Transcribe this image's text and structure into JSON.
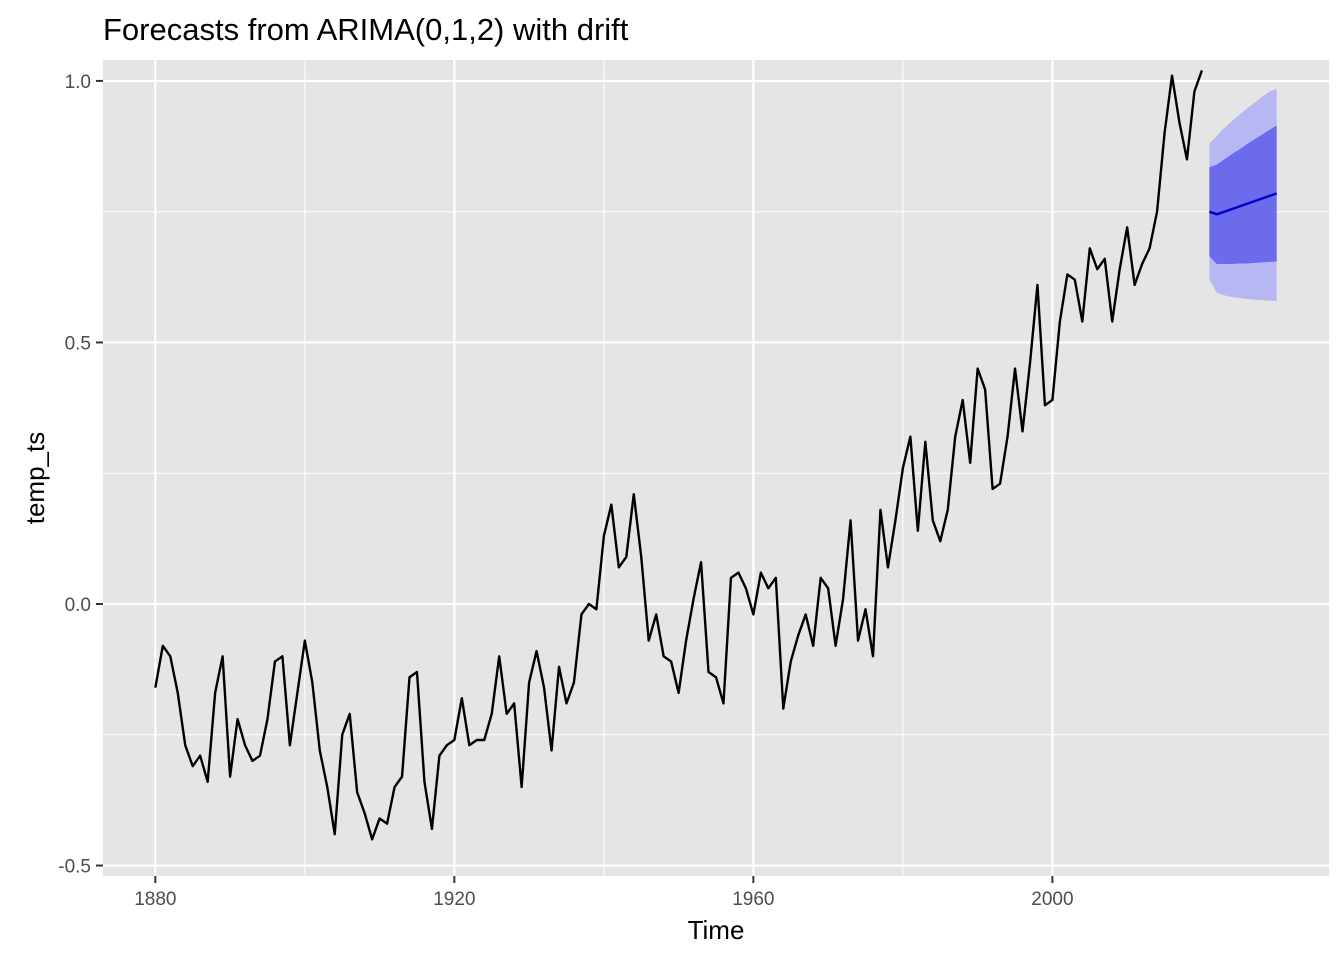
{
  "chart_data": {
    "type": "line",
    "title": "Forecasts from ARIMA(0,1,2) with drift",
    "xlabel": "Time",
    "ylabel": "temp_ts",
    "xlim": [
      1873,
      2037
    ],
    "ylim": [
      -0.52,
      1.04
    ],
    "x_ticks": [
      1880,
      1920,
      1960,
      2000
    ],
    "x_tick_labels": [
      "1880",
      "1920",
      "1960",
      "2000"
    ],
    "y_ticks": [
      -0.5,
      0.0,
      0.5,
      1.0
    ],
    "y_tick_labels": [
      "-0.5",
      "0.0",
      "0.5",
      "1.0"
    ],
    "grid": true,
    "legend": "none",
    "colors": {
      "panel": "#e5e5e5",
      "grid": "#ffffff",
      "series_line": "#000000",
      "forecast_line": "#0000cc",
      "pi80": "#6b6bec",
      "pi95": "#b7b7f4",
      "tick": "#4d4d4d"
    },
    "series": [
      {
        "x": [
          1880,
          1881,
          1882,
          1883,
          1884,
          1885,
          1886,
          1887,
          1888,
          1889,
          1890,
          1891,
          1892,
          1893,
          1894,
          1895,
          1896,
          1897,
          1898,
          1899,
          1900,
          1901,
          1902,
          1903,
          1904,
          1905,
          1906,
          1907,
          1908,
          1909,
          1910,
          1911,
          1912,
          1913,
          1914,
          1915,
          1916,
          1917,
          1918,
          1919,
          1920,
          1921,
          1922,
          1923,
          1924,
          1925,
          1926,
          1927,
          1928,
          1929,
          1930,
          1931,
          1932,
          1933,
          1934,
          1935,
          1936,
          1937,
          1938,
          1939,
          1940,
          1941,
          1942,
          1943,
          1944,
          1945,
          1946,
          1947,
          1948,
          1949,
          1950,
          1951,
          1952,
          1953,
          1954,
          1955,
          1956,
          1957,
          1958,
          1959,
          1960,
          1961,
          1962,
          1963,
          1964,
          1965,
          1966,
          1967,
          1968,
          1969,
          1970,
          1971,
          1972,
          1973,
          1974,
          1975,
          1976,
          1977,
          1978,
          1979,
          1980,
          1981,
          1982,
          1983,
          1984,
          1985,
          1986,
          1987,
          1988,
          1989,
          1990,
          1991,
          1992,
          1993,
          1994,
          1995,
          1996,
          1997,
          1998,
          1999,
          2000,
          2001,
          2002,
          2003,
          2004,
          2005,
          2006,
          2007,
          2008,
          2009,
          2010,
          2011,
          2012,
          2013,
          2014,
          2015,
          2016,
          2017,
          2018,
          2019,
          2020
        ],
        "values": [
          -0.16,
          -0.08,
          -0.1,
          -0.17,
          -0.27,
          -0.31,
          -0.29,
          -0.34,
          -0.17,
          -0.1,
          -0.33,
          -0.22,
          -0.27,
          -0.3,
          -0.29,
          -0.22,
          -0.11,
          -0.1,
          -0.27,
          -0.17,
          -0.07,
          -0.15,
          -0.28,
          -0.35,
          -0.44,
          -0.25,
          -0.21,
          -0.36,
          -0.4,
          -0.45,
          -0.41,
          -0.42,
          -0.35,
          -0.33,
          -0.14,
          -0.13,
          -0.34,
          -0.43,
          -0.29,
          -0.27,
          -0.26,
          -0.18,
          -0.27,
          -0.26,
          -0.26,
          -0.21,
          -0.1,
          -0.21,
          -0.19,
          -0.35,
          -0.15,
          -0.09,
          -0.16,
          -0.28,
          -0.12,
          -0.19,
          -0.15,
          -0.02,
          0.0,
          -0.01,
          0.13,
          0.19,
          0.07,
          0.09,
          0.21,
          0.09,
          -0.07,
          -0.02,
          -0.1,
          -0.11,
          -0.17,
          -0.07,
          0.01,
          0.08,
          -0.13,
          -0.14,
          -0.19,
          0.05,
          0.06,
          0.03,
          -0.02,
          0.06,
          0.03,
          0.05,
          -0.2,
          -0.11,
          -0.06,
          -0.02,
          -0.08,
          0.05,
          0.03,
          -0.08,
          0.01,
          0.16,
          -0.07,
          -0.01,
          -0.1,
          0.18,
          0.07,
          0.16,
          0.26,
          0.32,
          0.14,
          0.31,
          0.16,
          0.12,
          0.18,
          0.32,
          0.39,
          0.27,
          0.45,
          0.41,
          0.22,
          0.23,
          0.32,
          0.45,
          0.33,
          0.46,
          0.61,
          0.38,
          0.39,
          0.54,
          0.63,
          0.62,
          0.54,
          0.68,
          0.64,
          0.66,
          0.54,
          0.64,
          0.72,
          0.61,
          0.65,
          0.68,
          0.75,
          0.9,
          1.01,
          0.92,
          0.85,
          0.98,
          1.02
        ]
      }
    ],
    "forecast": {
      "x": [
        2021,
        2022,
        2023,
        2024,
        2025,
        2026,
        2027,
        2028,
        2029,
        2030
      ],
      "mean": [
        0.75,
        0.745,
        0.75,
        0.755,
        0.76,
        0.765,
        0.77,
        0.775,
        0.78,
        0.785
      ],
      "lo80": [
        0.665,
        0.65,
        0.65,
        0.65,
        0.651,
        0.651,
        0.652,
        0.653,
        0.654,
        0.655
      ],
      "hi80": [
        0.835,
        0.84,
        0.85,
        0.86,
        0.869,
        0.879,
        0.888,
        0.897,
        0.906,
        0.915
      ],
      "lo95": [
        0.62,
        0.595,
        0.59,
        0.587,
        0.585,
        0.583,
        0.582,
        0.581,
        0.58,
        0.579
      ],
      "hi95": [
        0.88,
        0.895,
        0.91,
        0.923,
        0.935,
        0.947,
        0.958,
        0.969,
        0.979,
        0.985
      ]
    }
  }
}
